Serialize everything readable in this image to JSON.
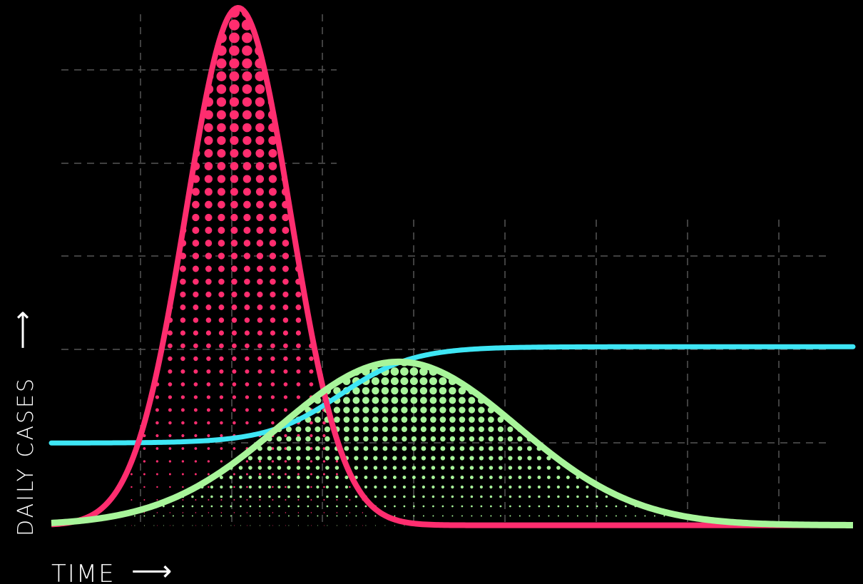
{
  "chart_data": {
    "type": "area",
    "title": "",
    "xlabel": "TIME",
    "ylabel": "DAILY CASES",
    "x_arrow": "⟶",
    "y_arrow": "⟶",
    "ticks_printed": false,
    "grid": true,
    "legend": "none",
    "xlim": [
      0,
      100
    ],
    "ylim": [
      0,
      100
    ],
    "colors": {
      "background": "#000000",
      "grid": "#555555",
      "peak_curve": "#ff2d6f",
      "flat_curve": "#a8f59a",
      "capacity_line": "#3ee6f5",
      "label": "#ffffff"
    },
    "series": [
      {
        "key": "peak",
        "fill": "dots",
        "curve": "gauss",
        "center": 23.3,
        "sigma": 6.5,
        "base": 0.6,
        "peak": 100,
        "x_start": 0,
        "x_end": 100
      },
      {
        "key": "flat",
        "fill": "dots",
        "curve": "gauss",
        "center": 43.3,
        "sigma": 14.8,
        "base": 0.6,
        "peak": 32,
        "x_start": 0,
        "x_end": 100
      },
      {
        "key": "capacity",
        "fill": "none",
        "curve": "sigmoid",
        "start_value": 16.4,
        "end_value": 34.9,
        "x_start": 0,
        "x_end": 100
      }
    ]
  }
}
